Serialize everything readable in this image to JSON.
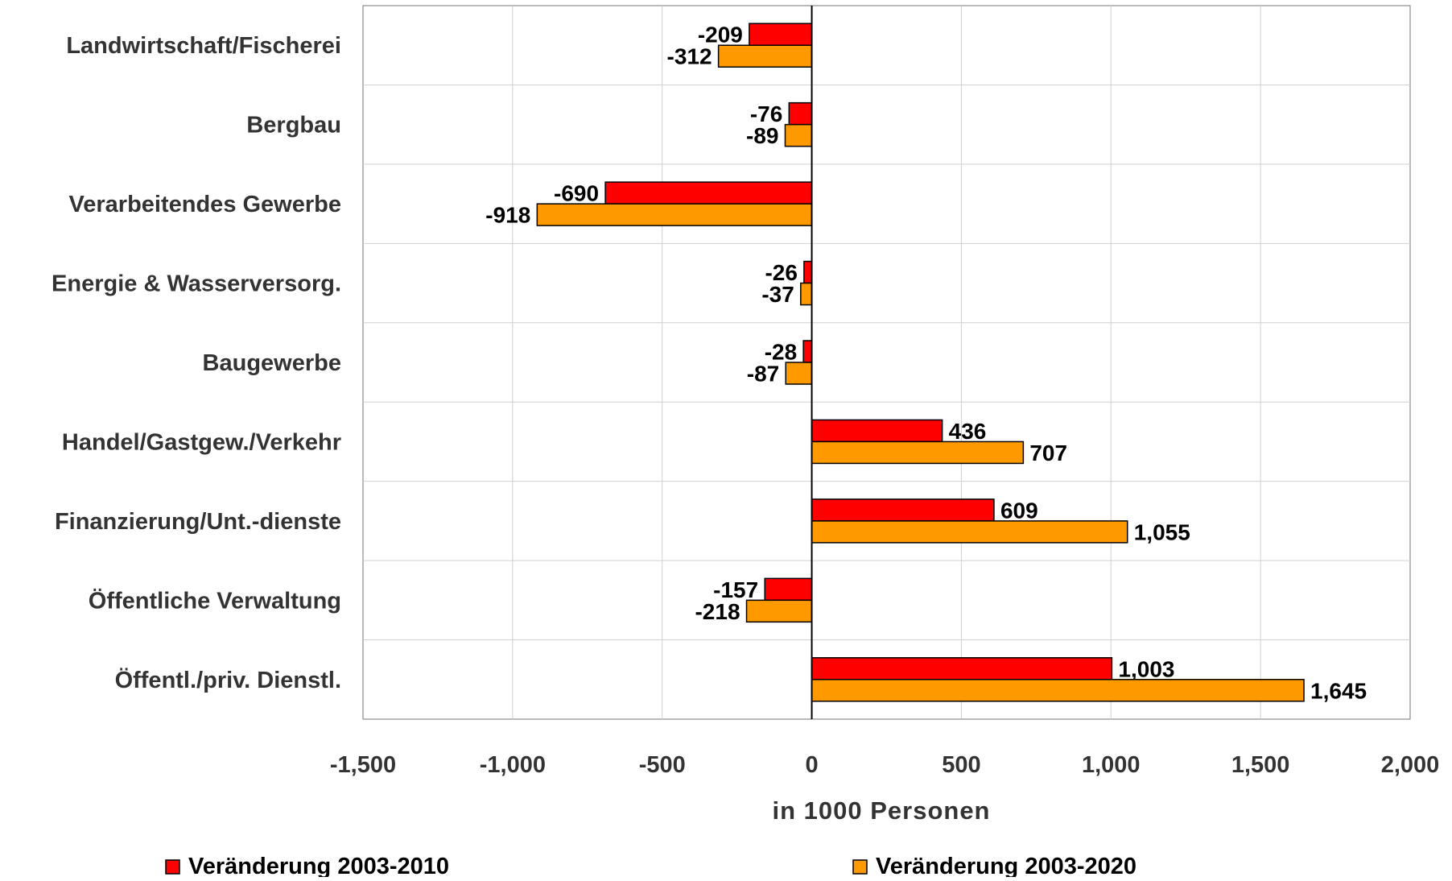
{
  "chart_data": {
    "type": "bar",
    "orientation": "horizontal",
    "categories": [
      "Landwirtschaft/Fischerei",
      "Bergbau",
      "Verarbeitendes Gewerbe",
      "Energie & Wasserversorg.",
      "Baugewerbe",
      "Handel/Gastgew./Verkehr",
      "Finanzierung/Unt.-dienste",
      "Öffentliche Verwaltung",
      "Öffentl./priv. Dienstl."
    ],
    "series": [
      {
        "name": "Veränderung 2003-2010",
        "color": "#ff0000",
        "values": [
          -209,
          -76,
          -690,
          -26,
          -28,
          436,
          609,
          -157,
          1003
        ],
        "labels": [
          "-209",
          "-76",
          "-690",
          "-26",
          "-28",
          "436",
          "609",
          "-157",
          "1,003"
        ]
      },
      {
        "name": "Veränderung 2003-2020",
        "color": "#ff9900",
        "values": [
          -312,
          -89,
          -918,
          -37,
          -87,
          707,
          1055,
          -218,
          1645
        ],
        "labels": [
          "-312",
          "-89",
          "-918",
          "-37",
          "-87",
          "707",
          "1,055",
          "-218",
          "1,645"
        ]
      }
    ],
    "xlim": [
      -1500,
      2000
    ],
    "xticks": [
      -1500,
      -1000,
      -500,
      0,
      500,
      1000,
      1500,
      2000
    ],
    "xtick_labels": [
      "-1,500",
      "-1,000",
      "-500",
      "0",
      "500",
      "1,000",
      "1,500",
      "2,000"
    ],
    "xlabel": "in 1000 Personen",
    "ylabel": "",
    "title": "",
    "grid": true,
    "legend_position": "bottom"
  }
}
